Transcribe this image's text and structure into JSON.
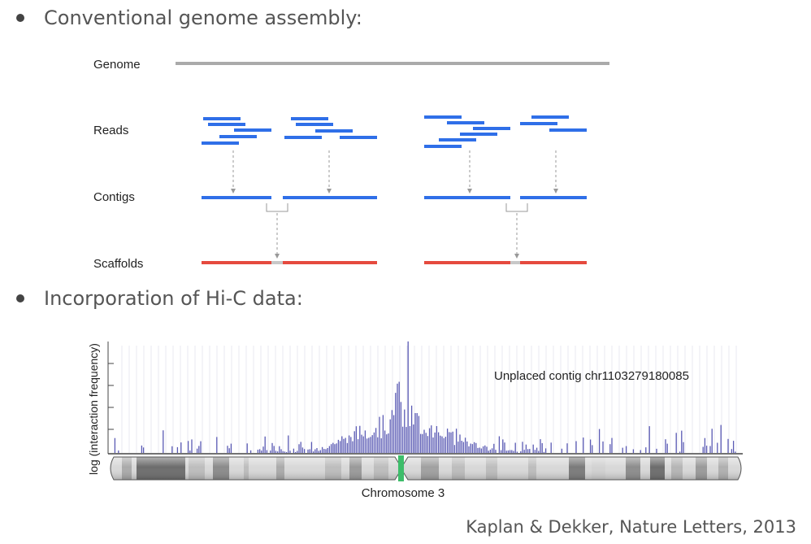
{
  "bullets": [
    {
      "text": "Conventional genome assembly:"
    },
    {
      "text": "Incorporation of Hi-C data:"
    }
  ],
  "assembly_diagram": {
    "labels": {
      "genome": "Genome",
      "reads": "Reads",
      "contigs": "Contigs",
      "scaffolds": "Scaffolds"
    },
    "colors": {
      "genome": "#aaaaaa",
      "reads": "#2f6fe8",
      "contigs": "#2f6fe8",
      "scaffolds": "#e54a3e",
      "gap": "#c8c8c8",
      "arrow": "#999999"
    }
  },
  "hic_plot": {
    "ylabel": "log (interaction frequency)",
    "xlabel": "Chromosome 3",
    "annotation": "Unplaced contig chr1103279180085",
    "colors": {
      "signal": "#5a5ab4",
      "centromere": "#3dbd6a",
      "axis": "#444444"
    }
  },
  "citation": "Kaplan & Dekker, Nature Letters, 2013"
}
